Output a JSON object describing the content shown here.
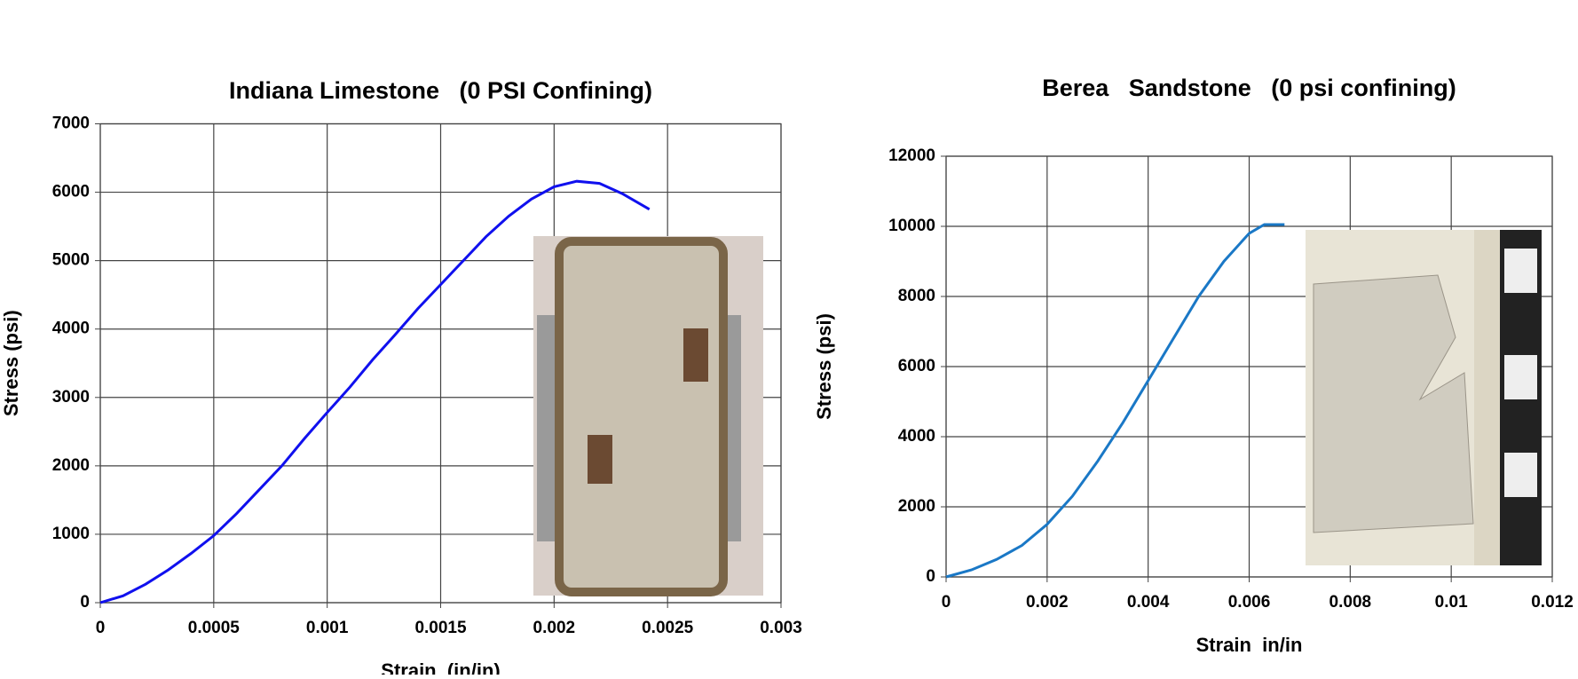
{
  "chart_data": [
    {
      "type": "line",
      "title": "Indiana Limestone   (0 PSI Confining)",
      "x_label": "Strain  (in/in)",
      "y_label": "Stress (psi)",
      "x": [
        0,
        0.0001,
        0.0002,
        0.0003,
        0.0004,
        0.0005,
        0.0006,
        0.0007,
        0.0008,
        0.0009,
        0.001,
        0.0011,
        0.0012,
        0.0013,
        0.0014,
        0.0015,
        0.0016,
        0.0017,
        0.0018,
        0.0019,
        0.002,
        0.0021,
        0.0022,
        0.0023,
        0.00242
      ],
      "values": [
        0,
        100,
        270,
        480,
        720,
        980,
        1300,
        1650,
        2000,
        2400,
        2780,
        3150,
        3550,
        3920,
        4300,
        4650,
        5000,
        5350,
        5650,
        5900,
        6080,
        6160,
        6130,
        5980,
        5750
      ],
      "color": "#1010ee",
      "grid": true,
      "xlim": [
        0,
        0.003
      ],
      "xticks": [
        0,
        0.0005,
        0.001,
        0.0015,
        0.002,
        0.0025,
        0.003
      ],
      "ylim": [
        0,
        7000
      ],
      "yticks": [
        0,
        1000,
        2000,
        3000,
        4000,
        5000,
        6000,
        7000
      ]
    },
    {
      "type": "line",
      "title": "Berea   Sandstone   (0 psi confining)",
      "x_label": "Strain  in/in",
      "y_label": "Stress (psi)",
      "x": [
        0,
        0.0005,
        0.001,
        0.0015,
        0.002,
        0.0025,
        0.003,
        0.0035,
        0.004,
        0.0045,
        0.005,
        0.0055,
        0.006,
        0.0063,
        0.0067
      ],
      "values": [
        0,
        200,
        500,
        900,
        1500,
        2300,
        3300,
        4400,
        5600,
        6800,
        8000,
        9000,
        9800,
        10050,
        10050
      ],
      "color": "#1a78c6",
      "grid": true,
      "xlim": [
        0,
        0.012
      ],
      "xticks": [
        0,
        0.002,
        0.004,
        0.006,
        0.008,
        0.01,
        0.012
      ],
      "ylim": [
        0,
        12000
      ],
      "yticks": [
        0,
        2000,
        4000,
        6000,
        8000,
        10000,
        12000
      ]
    }
  ]
}
